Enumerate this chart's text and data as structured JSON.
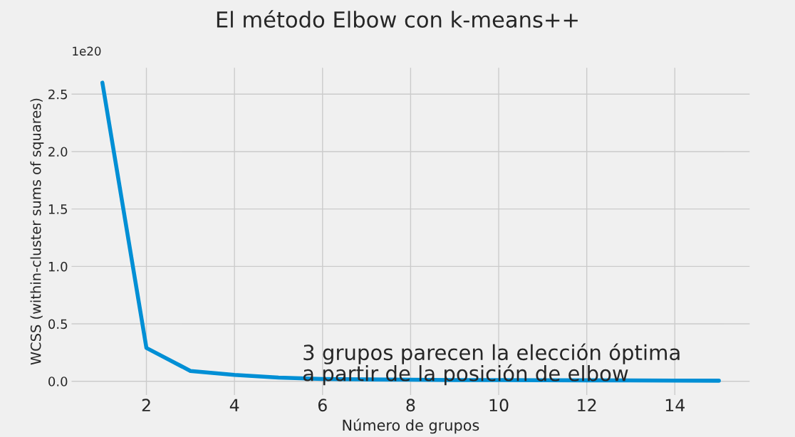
{
  "chart_data": {
    "type": "line",
    "title": "El método Elbow con k-means++",
    "xlabel": "Número de grupos",
    "ylabel": "WCSS (within-cluster sums of squares)",
    "x": [
      1,
      2,
      3,
      4,
      5,
      6,
      7,
      8,
      9,
      10,
      11,
      12,
      13,
      14,
      15
    ],
    "series": [
      {
        "color": "#008fd5",
        "values": [
          2.6,
          0.29,
          0.09,
          0.056,
          0.032,
          0.02,
          0.016,
          0.013,
          0.011,
          0.01,
          0.009,
          0.008,
          0.007,
          0.006,
          0.005
        ]
      }
    ],
    "xlim": [
      0.3,
      15.7
    ],
    "xticks": [
      2,
      4,
      6,
      8,
      10,
      12,
      14
    ],
    "ylim": [
      -0.12,
      2.73
    ],
    "yticks": [
      {
        "value": 0,
        "label": "0.0"
      },
      {
        "value": 0.5,
        "label": "0.5"
      },
      {
        "value": 1,
        "label": "1.0"
      },
      {
        "value": 1.5,
        "label": "1.5"
      },
      {
        "value": 2,
        "label": "2.0"
      },
      {
        "value": 2.5,
        "label": "2.5"
      }
    ],
    "grid": true,
    "marker": "none",
    "line_style": "solid",
    "legend": false,
    "annotations": [
      "1e20",
      "3 grupos parecen la elección óptima\na partir de la posición de elbow"
    ]
  }
}
